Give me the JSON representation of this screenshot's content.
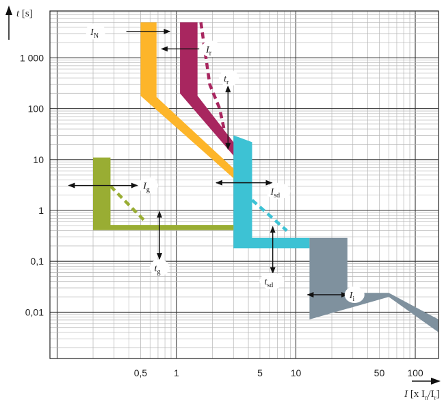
{
  "chart_data": {
    "type": "line",
    "x_scale": "log",
    "y_scale": "log",
    "xlim": [
      0.1,
      200
    ],
    "ylim": [
      0.0008,
      8000
    ],
    "x_ticks": [
      {
        "value": 0.5,
        "label": "0,5"
      },
      {
        "value": 1,
        "label": "1"
      },
      {
        "value": 5,
        "label": "5"
      },
      {
        "value": 10,
        "label": "10"
      },
      {
        "value": 50,
        "label": "50"
      },
      {
        "value": 100,
        "label": "100"
      }
    ],
    "y_ticks": [
      {
        "value": 1000,
        "label": "1 000"
      },
      {
        "value": 100,
        "label": "100"
      },
      {
        "value": 10,
        "label": "10"
      },
      {
        "value": 1,
        "label": "1"
      },
      {
        "value": 0.1,
        "label": "0,1"
      },
      {
        "value": 0.01,
        "label": "0,01"
      }
    ],
    "xlabel": {
      "main": "I [x I",
      "sub1": "n",
      "sep": "/I",
      "sub2": "r",
      "end": "]"
    },
    "ylabel": {
      "main": "t [s]"
    },
    "grid": true,
    "colors": {
      "fuse": "#fdb52a",
      "long_time": "#a8265f",
      "short_time": "#3dc2d4",
      "instantaneous": "#7f919e",
      "ground": "#99ad33",
      "grid": "#b5b5b5",
      "major_grid": "#333333"
    },
    "bands": [
      {
        "name": "I_N",
        "color_key": "fuse",
        "outline": [
          [
            0.5,
            5000
          ],
          [
            0.68,
            5000
          ],
          [
            0.68,
            170
          ],
          [
            3.8,
            4
          ],
          [
            3.8,
            3.6
          ],
          [
            3.0,
            3.6
          ],
          [
            3.0,
            4.3
          ],
          [
            0.5,
            180
          ]
        ]
      },
      {
        "name": "I_r",
        "color_key": "long_time",
        "outline": [
          [
            1.07,
            5000
          ],
          [
            1.5,
            5000
          ],
          [
            1.5,
            180
          ],
          [
            3.1,
            20
          ],
          [
            3.1,
            11
          ],
          [
            1.07,
            200
          ]
        ]
      },
      {
        "name": "I_sd",
        "color_key": "short_time",
        "outline": [
          [
            3.0,
            30
          ],
          [
            4.3,
            22
          ],
          [
            4.3,
            0.29
          ],
          [
            13,
            0.29
          ],
          [
            13,
            0.18
          ],
          [
            3.0,
            0.18
          ]
        ]
      },
      {
        "name": "I_i",
        "color_key": "instantaneous",
        "outline": [
          [
            13,
            0.29
          ],
          [
            27,
            0.29
          ],
          [
            27,
            0.024
          ],
          [
            60,
            0.024
          ],
          [
            170,
            0.0065
          ],
          [
            170,
            0.0035
          ],
          [
            60,
            0.02
          ],
          [
            13,
            0.0072
          ]
        ]
      },
      {
        "name": "I_g",
        "color_key": "ground",
        "outline": [
          [
            0.2,
            11
          ],
          [
            0.28,
            11
          ],
          [
            0.28,
            0.52
          ],
          [
            3.0,
            0.52
          ],
          [
            3.0,
            0.41
          ],
          [
            0.2,
            0.41
          ]
        ]
      }
    ],
    "dashed_lines": [
      {
        "color_key": "long_time",
        "points": [
          [
            1.6,
            5000
          ],
          [
            1.9,
            300
          ],
          [
            2.3,
            100
          ],
          [
            2.5,
            40
          ]
        ]
      },
      {
        "color_key": "short_time",
        "points": [
          [
            4.3,
            1.6
          ],
          [
            8.4,
            0.4
          ]
        ]
      },
      {
        "color_key": "ground",
        "points": [
          [
            0.28,
            3
          ],
          [
            0.55,
            0.6
          ]
        ]
      }
    ],
    "arrows": [
      {
        "from": [
          0.38,
          3300
        ],
        "to": [
          0.88,
          3300
        ],
        "style": "single"
      },
      {
        "from": [
          1.55,
          1500
        ],
        "to": [
          0.75,
          1500
        ],
        "style": "single"
      },
      {
        "from": [
          2.7,
          280
        ],
        "to": [
          2.7,
          16
        ],
        "style": "double"
      },
      {
        "from": [
          0.72,
          0.95
        ],
        "to": [
          0.72,
          0.11
        ],
        "style": "double"
      },
      {
        "from": [
          2.15,
          3.5
        ],
        "to": [
          6.3,
          3.5
        ],
        "style": "double"
      },
      {
        "from": [
          6.4,
          0.48
        ],
        "to": [
          6.4,
          0.058
        ],
        "style": "double"
      },
      {
        "from": [
          0.125,
          3.1
        ],
        "to": [
          0.47,
          3.1
        ],
        "style": "double"
      },
      {
        "from": [
          12.5,
          0.022
        ],
        "to": [
          27,
          0.022
        ],
        "style": "double"
      }
    ],
    "annotations": [
      {
        "main": "I",
        "sub": "N",
        "x": 0.21,
        "y": 3300
      },
      {
        "main": "I",
        "sub": "r",
        "x": 1.95,
        "y": 1500
      },
      {
        "main": "t",
        "sub": "r",
        "x": 2.75,
        "y": 400
      },
      {
        "main": "I",
        "sub": "g",
        "x": 0.58,
        "y": 3.1
      },
      {
        "main": "I",
        "sub": "sd",
        "x": 7.1,
        "y": 2.4
      },
      {
        "main": "t",
        "sub": "g",
        "x": 0.72,
        "y": 0.075
      },
      {
        "main": "t",
        "sub": "sd",
        "x": 6.3,
        "y": 0.041
      },
      {
        "main": "I",
        "sub": "i",
        "x": 31,
        "y": 0.022
      }
    ]
  }
}
